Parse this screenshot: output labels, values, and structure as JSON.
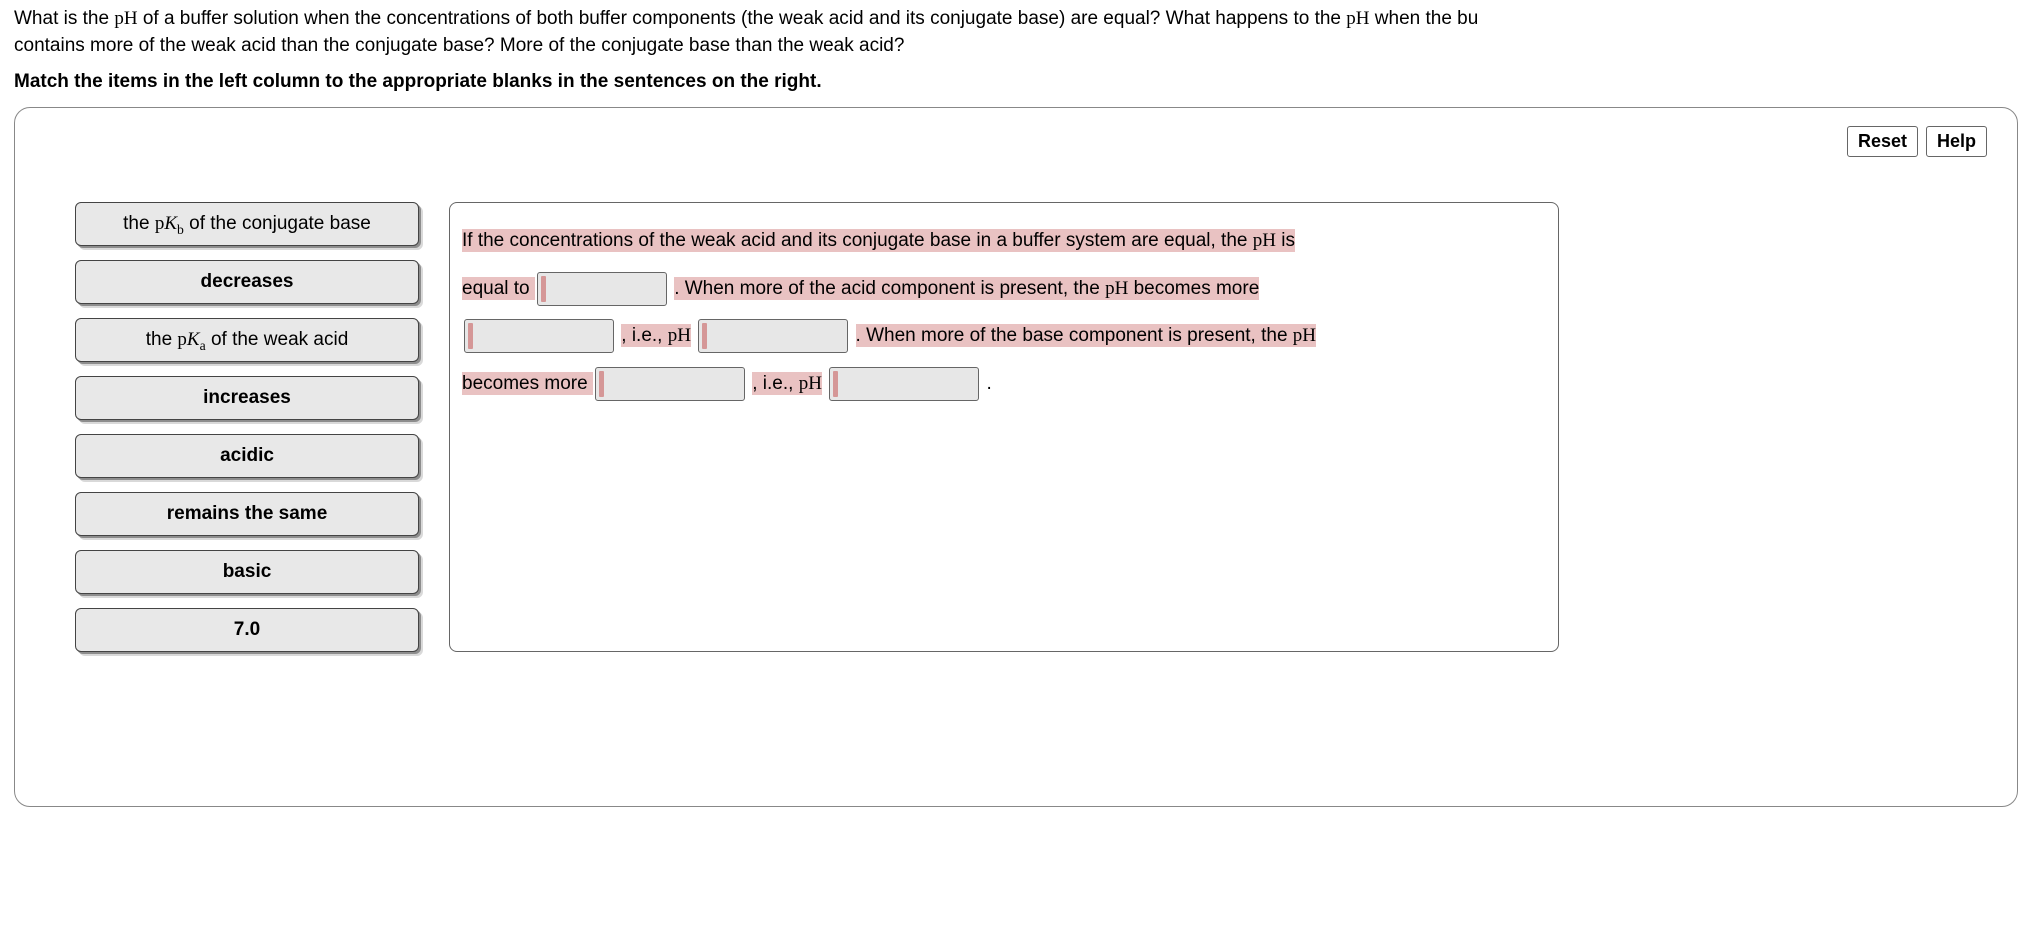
{
  "question": {
    "line1_a": "What is the ",
    "line1_b": " of a buffer solution when the concentrations of both buffer components (the weak acid and its conjugate base) are equal? What happens to the ",
    "line1_c": " when the bu",
    "line2": "contains more of the weak acid than the conjugate base? More of the conjugate base than the weak acid?",
    "pH": "pH"
  },
  "instruction": "Match the items in the left column to the appropriate blanks in the sentences on the right.",
  "toolbar": {
    "reset": "Reset",
    "help": "Help"
  },
  "choices": [
    {
      "type": "pk",
      "prefix": "the ",
      "pk": "p",
      "K": "K",
      "sub": "b",
      "suffix": " of the conjugate base"
    },
    {
      "type": "plain",
      "label": "decreases"
    },
    {
      "type": "pk",
      "prefix": "the ",
      "pk": "p",
      "K": "K",
      "sub": "a",
      "suffix": " of the weak acid"
    },
    {
      "type": "plain",
      "label": "increases"
    },
    {
      "type": "plain",
      "label": "acidic"
    },
    {
      "type": "plain",
      "label": "remains the same"
    },
    {
      "type": "plain",
      "label": "basic"
    },
    {
      "type": "plain",
      "label": "7.0"
    }
  ],
  "sentence": {
    "s1a": "If the concentrations of the weak acid and its conjugate base in a buffer system are equal, the ",
    "s1b": " is",
    "s2a": "equal to ",
    "s2b": ". When more of the acid component is present, the ",
    "s2c": " becomes more",
    "s3a": ", i.e., ",
    "s3b": ". When more of the base component is present, the ",
    "s4a": "becomes more ",
    "s4b": ", i.e., ",
    "s4c": ".",
    "pH": "pH"
  }
}
